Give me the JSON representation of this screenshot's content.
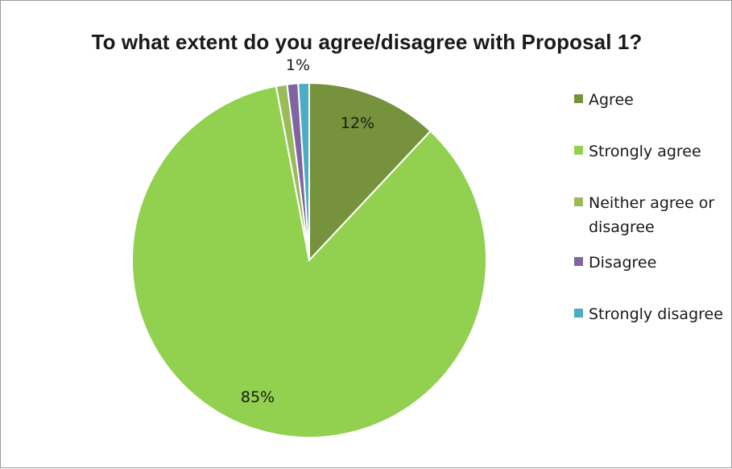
{
  "chart_data": {
    "type": "pie",
    "title": "To what extent do you agree/disagree with Proposal 1?",
    "categories": [
      "Agree",
      "Strongly agree",
      "Neither agree or disagree",
      "Disagree",
      "Strongly disagree"
    ],
    "values": [
      12,
      85,
      1,
      1,
      1
    ],
    "data_labels": [
      "12%",
      "85%",
      "1%",
      "",
      ""
    ],
    "colors": [
      "#76923c",
      "#92d050",
      "#9bbb59",
      "#8064a2",
      "#4bacc6"
    ],
    "start_angle_deg": 0,
    "direction": "clockwise",
    "legend_position": "right"
  }
}
